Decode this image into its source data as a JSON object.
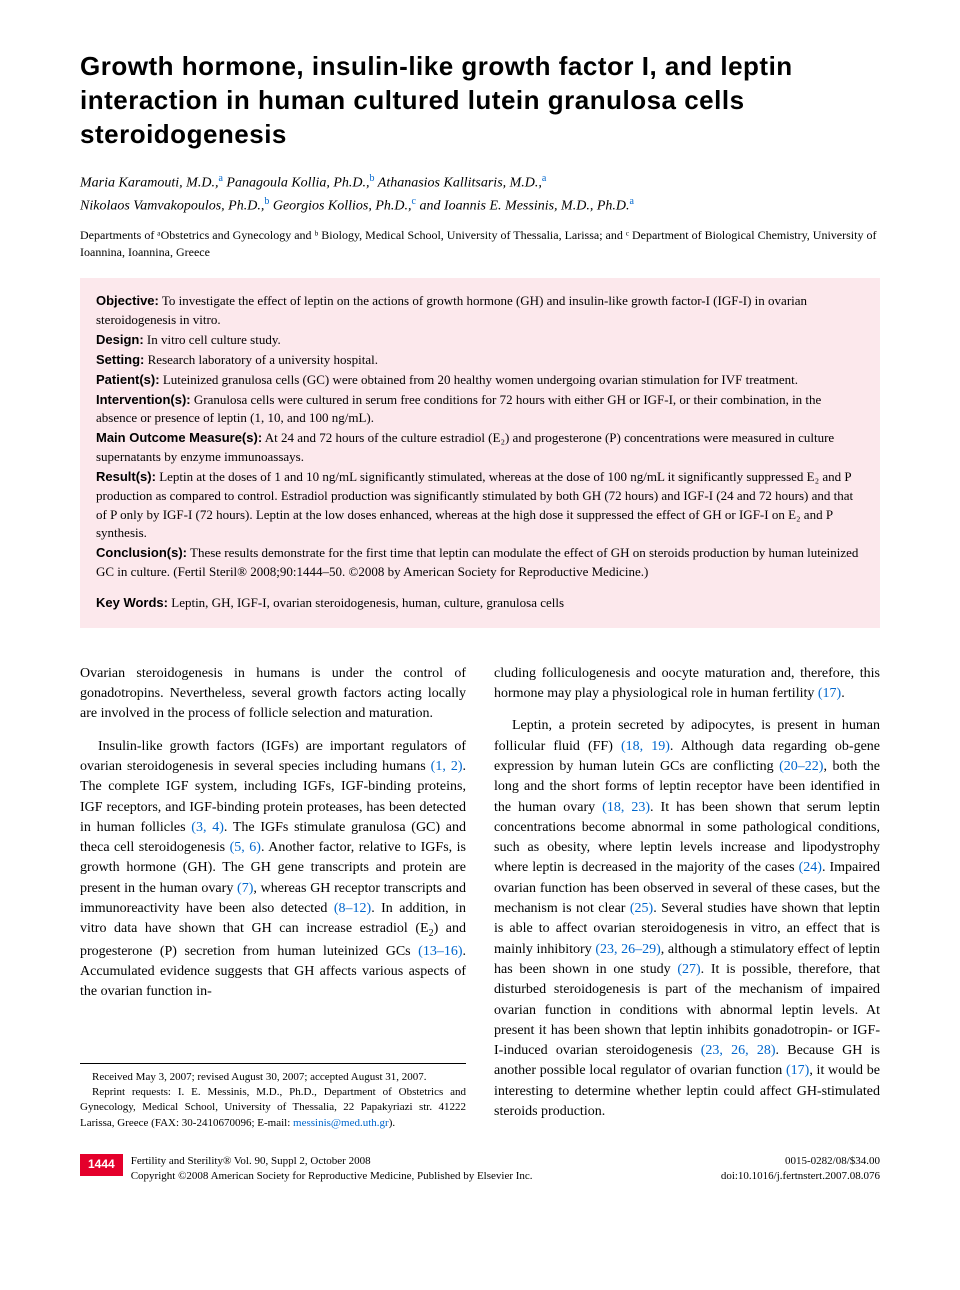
{
  "title": "Growth hormone, insulin-like growth factor I, and leptin interaction in human cultured lutein granulosa cells steroidogenesis",
  "authors": [
    {
      "name": "Maria Karamouti, M.D.,",
      "aff": "a"
    },
    {
      "name": "Panagoula Kollia, Ph.D.,",
      "aff": "b"
    },
    {
      "name": "Athanasios Kallitsaris, M.D.,",
      "aff": "a"
    },
    {
      "name": "Nikolaos Vamvakopoulos, Ph.D.,",
      "aff": "b"
    },
    {
      "name": "Georgios Kollios, Ph.D.,",
      "aff": "c"
    },
    {
      "name": "and Ioannis E. Messinis, M.D., Ph.D.",
      "aff": "a"
    }
  ],
  "affiliations": "Departments of ᵃObstetrics and Gynecology and ᵇ Biology, Medical School, University of Thessalia, Larissa; and ᶜ Department of Biological Chemistry, University of Ioannina, Ioannina, Greece",
  "abstract": {
    "objective": {
      "label": "Objective:",
      "text": "To investigate the effect of leptin on the actions of growth hormone (GH) and insulin-like growth factor-I (IGF-I) in ovarian steroidogenesis in vitro."
    },
    "design": {
      "label": "Design:",
      "text": "In vitro cell culture study."
    },
    "setting": {
      "label": "Setting:",
      "text": "Research laboratory of a university hospital."
    },
    "patients": {
      "label": "Patient(s):",
      "text": "Luteinized granulosa cells (GC) were obtained from 20 healthy women undergoing ovarian stimulation for IVF treatment."
    },
    "interventions": {
      "label": "Intervention(s):",
      "text": "Granulosa cells were cultured in serum free conditions for 72 hours with either GH or IGF-I, or their combination, in the absence or presence of leptin (1, 10, and 100 ng/mL)."
    },
    "outcome": {
      "label": "Main Outcome Measure(s):",
      "text": "At 24 and 72 hours of the culture estradiol (E₂) and progesterone (P) concentrations were measured in culture supernatants by enzyme immunoassays."
    },
    "results": {
      "label": "Result(s):",
      "text": "Leptin at the doses of 1 and 10 ng/mL significantly stimulated, whereas at the dose of 100 ng/mL it significantly suppressed E₂ and P production as compared to control. Estradiol production was significantly stimulated by both GH (72 hours) and IGF-I (24 and 72 hours) and that of P only by IGF-I (72 hours). Leptin at the low doses enhanced, whereas at the high dose it suppressed the effect of GH or IGF-I on E₂ and P synthesis."
    },
    "conclusions": {
      "label": "Conclusion(s):",
      "text": "These results demonstrate for the first time that leptin can modulate the effect of GH on steroids production by human luteinized GC in culture. (Fertil Steril® 2008;90:1444–50. ©2008 by American Society for Reproductive Medicine.)"
    },
    "keywords": {
      "label": "Key Words:",
      "text": "Leptin, GH, IGF-I, ovarian steroidogenesis, human, culture, granulosa cells"
    }
  },
  "body": {
    "col1": {
      "p1": "Ovarian steroidogenesis in humans is under the control of gonadotropins. Nevertheless, several growth factors acting locally are involved in the process of follicle selection and maturation.",
      "p2a": "Insulin-like growth factors (IGFs) are important regulators of ovarian steroidogenesis in several species including humans ",
      "p2_ref1": "(1, 2)",
      "p2b": ". The complete IGF system, including IGFs, IGF-binding proteins, IGF receptors, and IGF-binding protein proteases, has been detected in human follicles ",
      "p2_ref2": "(3, 4)",
      "p2c": ". The IGFs stimulate granulosa (GC) and theca cell steroidogenesis ",
      "p2_ref3": "(5, 6)",
      "p2d": ". Another factor, relative to IGFs, is growth hormone (GH). The GH gene transcripts and protein are present in the human ovary ",
      "p2_ref4": "(7)",
      "p2e": ", whereas GH receptor transcripts and immunoreactivity have been also detected ",
      "p2_ref5": "(8–12)",
      "p2f": ". In addition, in vitro data have shown that GH can increase estradiol (E",
      "p2_sub": "2",
      "p2g": ") and progesterone (P) secretion from human luteinized GCs ",
      "p2_ref6": "(13–16)",
      "p2h": ". Accumulated evidence suggests that GH affects various aspects of the ovarian function in-"
    },
    "col2": {
      "p1a": "cluding folliculogenesis and oocyte maturation and, therefore, this hormone may play a physiological role in human fertility ",
      "p1_ref1": "(17)",
      "p1b": ".",
      "p2a": "Leptin, a protein secreted by adipocytes, is present in human follicular fluid (FF) ",
      "p2_ref1": "(18, 19)",
      "p2b": ". Although data regarding ob-gene expression by human lutein GCs are conflicting ",
      "p2_ref2": "(20–22)",
      "p2c": ", both the long and the short forms of leptin receptor have been identified in the human ovary ",
      "p2_ref3": "(18, 23)",
      "p2d": ". It has been shown that serum leptin concentrations become abnormal in some pathological conditions, such as obesity, where leptin levels increase and lipodystrophy where leptin is decreased in the majority of the cases ",
      "p2_ref4": "(24)",
      "p2e": ". Impaired ovarian function has been observed in several of these cases, but the mechanism is not clear ",
      "p2_ref5": "(25)",
      "p2f": ". Several studies have shown that leptin is able to affect ovarian steroidogenesis in vitro, an effect that is mainly inhibitory ",
      "p2_ref6": "(23, 26–29)",
      "p2g": ", although a stimulatory effect of leptin has been shown in one study ",
      "p2_ref7": "(27)",
      "p2h": ". It is possible, therefore, that disturbed steroidogenesis is part of the mechanism of impaired ovarian function in conditions with abnormal leptin levels. At present it has been shown that leptin inhibits gonadotropin- or IGF-I-induced ovarian steroidogenesis ",
      "p2_ref8": "(23, 26, 28)",
      "p2i": ". Because GH is another possible local regulator of ovarian function ",
      "p2_ref9": "(17)",
      "p2j": ", it would be interesting to determine whether leptin could affect GH-stimulated steroids production."
    }
  },
  "received": {
    "line1": "Received May 3, 2007; revised August 30, 2007; accepted August 31, 2007.",
    "line2a": "Reprint requests: I. E. Messinis, M.D., Ph.D., Department of Obstetrics and Gynecology, Medical School, University of Thessalia, 22 Papakyriazi str. 41222 Larissa, Greece (FAX: 30-2410670096; E-mail: ",
    "email": "messinis@med.uth.gr",
    "line2b": ")."
  },
  "footer": {
    "page": "1444",
    "left1": "Fertility and Sterility® Vol. 90, Suppl 2, October 2008",
    "left2": "Copyright ©2008 American Society for Reproductive Medicine, Published by Elsevier Inc.",
    "right1": "0015-0282/08/$34.00",
    "right2": "doi:10.1016/j.fertnstert.2007.08.076"
  },
  "colors": {
    "abstract_bg": "#fce8ec",
    "link": "#0066cc",
    "badge": "#e4002b"
  }
}
